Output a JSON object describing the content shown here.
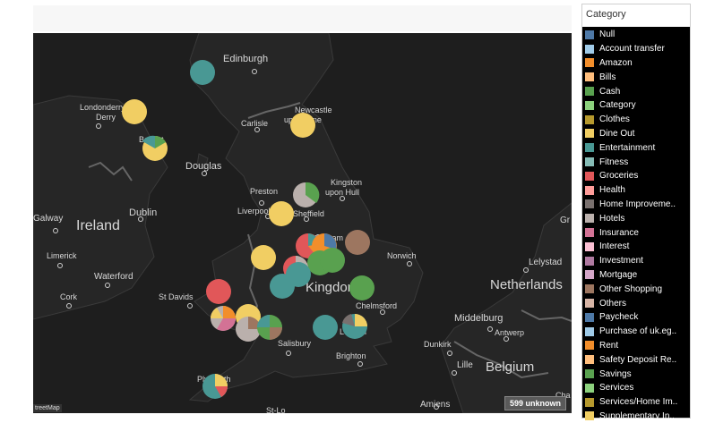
{
  "map": {
    "place_labels": [
      {
        "text": "Edinburgh",
        "size": 11
      },
      {
        "text": "Newcastle",
        "size": 9
      },
      {
        "text": "upon Tyne",
        "size": 9
      },
      {
        "text": "Londonderry",
        "size": 9
      },
      {
        "text": "Derry",
        "size": 9
      },
      {
        "text": "Belfast",
        "size": 9
      },
      {
        "text": "Carlisle",
        "size": 9
      },
      {
        "text": "Douglas",
        "size": 11
      },
      {
        "text": "Kingston",
        "size": 9
      },
      {
        "text": "upon Hull",
        "size": 9
      },
      {
        "text": "Preston",
        "size": 9
      },
      {
        "text": "Liverpool",
        "size": 9
      },
      {
        "text": "Sheffield",
        "size": 9
      },
      {
        "text": "Galway",
        "size": 10
      },
      {
        "text": "Ireland",
        "size": 16
      },
      {
        "text": "Dublin",
        "size": 11
      },
      {
        "text": "Limerick",
        "size": 9
      },
      {
        "text": "Waterford",
        "size": 10
      },
      {
        "text": "Cork",
        "size": 9
      },
      {
        "text": "St Davids",
        "size": 9
      },
      {
        "text": "Nottingham",
        "size": 9
      },
      {
        "text": "Norwich",
        "size": 9
      },
      {
        "text": "Lelystad",
        "size": 10
      },
      {
        "text": "Netherlands",
        "size": 15
      },
      {
        "text": "Kingdom",
        "size": 15
      },
      {
        "text": "Chelmsford",
        "size": 9
      },
      {
        "text": "Middelburg",
        "size": 11
      },
      {
        "text": "Antwerp",
        "size": 9
      },
      {
        "text": "Dunkirk",
        "size": 9
      },
      {
        "text": "Lille",
        "size": 10
      },
      {
        "text": "Belgium",
        "size": 15
      },
      {
        "text": "London",
        "size": 9
      },
      {
        "text": "Salisbury",
        "size": 9
      },
      {
        "text": "Brighton",
        "size": 9
      },
      {
        "text": "Plymouth",
        "size": 9
      },
      {
        "text": "Amiens",
        "size": 10
      },
      {
        "text": "St-Lo",
        "size": 9
      },
      {
        "text": "Gr",
        "size": 10
      },
      {
        "text": "Cha",
        "size": 9
      }
    ],
    "attribution": "treetMap",
    "unknown_badge": "599 unknown"
  },
  "legend": {
    "title": "Category",
    "items": [
      {
        "label": "Null",
        "color": "#4e79a7"
      },
      {
        "label": "Account transfer",
        "color": "#a0cbe8"
      },
      {
        "label": "Amazon",
        "color": "#f28e2b"
      },
      {
        "label": "Bills",
        "color": "#ffbe7d"
      },
      {
        "label": "Cash",
        "color": "#59a14f"
      },
      {
        "label": "Category",
        "color": "#8cd17d"
      },
      {
        "label": "Clothes",
        "color": "#b6992d"
      },
      {
        "label": "Dine Out",
        "color": "#f1ce63"
      },
      {
        "label": "Entertainment",
        "color": "#499894"
      },
      {
        "label": "Fitness",
        "color": "#86bcb6"
      },
      {
        "label": "Groceries",
        "color": "#e15759"
      },
      {
        "label": "Health",
        "color": "#ff9d9a"
      },
      {
        "label": "Home Improveme..",
        "color": "#79706e"
      },
      {
        "label": "Hotels",
        "color": "#bab0ac"
      },
      {
        "label": "Insurance",
        "color": "#d37295"
      },
      {
        "label": "Interest",
        "color": "#fabfd2"
      },
      {
        "label": "Investment",
        "color": "#b07aa1"
      },
      {
        "label": "Mortgage",
        "color": "#d4a6c8"
      },
      {
        "label": "Other Shopping",
        "color": "#9d7660"
      },
      {
        "label": "Others",
        "color": "#d7b5a6"
      },
      {
        "label": "Paycheck",
        "color": "#4e79a7"
      },
      {
        "label": "Purchase of uk.eg..",
        "color": "#a0cbe8"
      },
      {
        "label": "Rent",
        "color": "#f28e2b"
      },
      {
        "label": "Safety Deposit Re..",
        "color": "#ffbe7d"
      },
      {
        "label": "Savings",
        "color": "#59a14f"
      },
      {
        "label": "Services",
        "color": "#8cd17d"
      },
      {
        "label": "Services/Home Im..",
        "color": "#b6992d"
      },
      {
        "label": "Supplementary In..",
        "color": "#f1ce63"
      }
    ]
  }
}
